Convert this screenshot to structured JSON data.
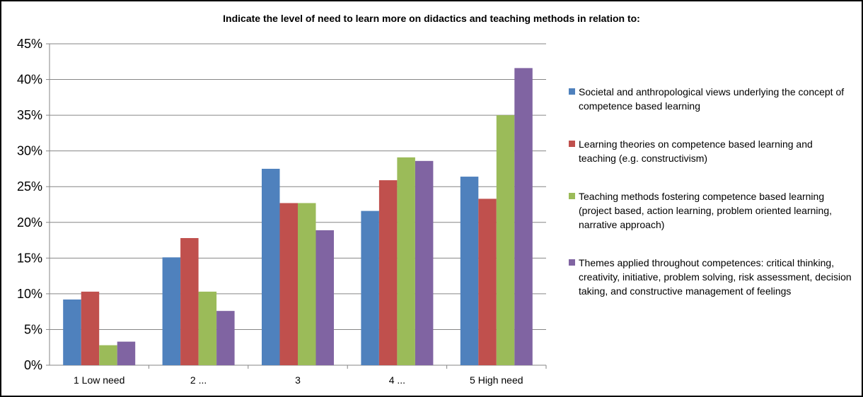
{
  "chart_data": {
    "type": "bar",
    "title": "Indicate the level of need to learn more on didactics and teaching methods in relation to:",
    "categories": [
      "1 Low need",
      "2 ...",
      "3",
      "4 ...",
      "5 High need"
    ],
    "ylim": [
      0,
      45
    ],
    "yticks": [
      "0%",
      "5%",
      "10%",
      "15%",
      "20%",
      "25%",
      "30%",
      "35%",
      "40%",
      "45%"
    ],
    "grid": true,
    "legend_position": "right",
    "series": [
      {
        "name": "Societal and anthropological views underlying the concept of competence based learning",
        "color": "#4F81BD",
        "values": [
          9.2,
          15.1,
          27.5,
          21.6,
          26.4
        ]
      },
      {
        "name": "Learning theories on competence based learning and teaching (e.g. constructivism)",
        "color": "#C0504D",
        "values": [
          10.3,
          17.8,
          22.7,
          25.9,
          23.3
        ]
      },
      {
        "name": "Teaching methods fostering competence based learning (project based, action learning, problem oriented learning, narrative approach)",
        "color": "#9BBB59",
        "values": [
          2.8,
          10.3,
          22.7,
          29.1,
          35.0
        ]
      },
      {
        "name": "Themes applied throughout competences: critical thinking, creativity, initiative, problem solving, risk assessment, decision taking, and constructive management of feelings",
        "color": "#8064A2",
        "values": [
          3.3,
          7.6,
          18.9,
          28.6,
          41.6
        ]
      }
    ]
  }
}
